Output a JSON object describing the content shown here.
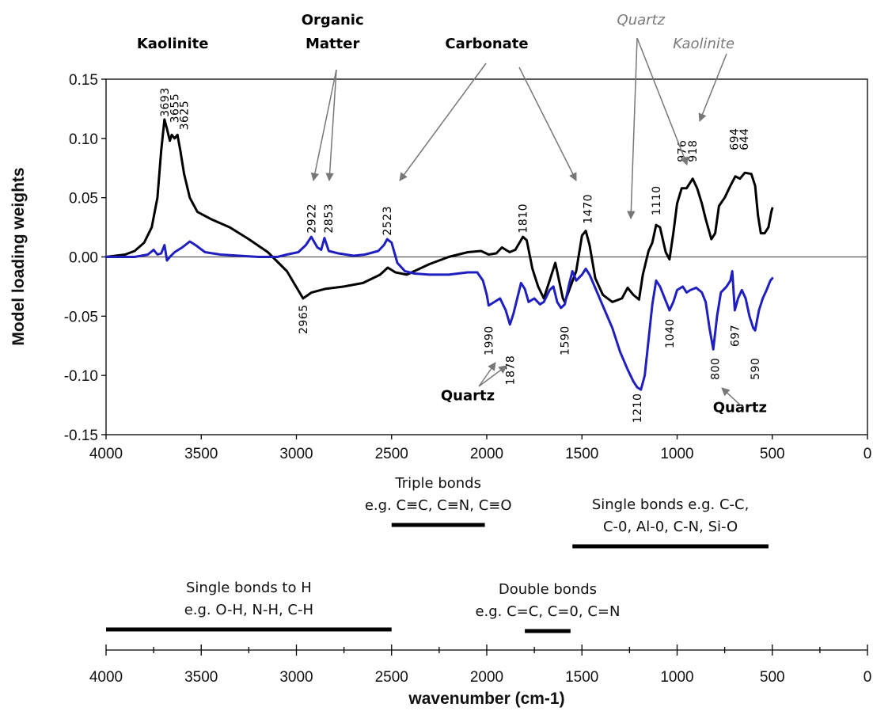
{
  "chart_data": {
    "type": "line",
    "title": "",
    "ylabel": "Model loading weights",
    "xlabel": "wavenumber (cm-1)",
    "xlim": [
      4000,
      0
    ],
    "ylim": [
      -0.15,
      0.15
    ],
    "xticks": [
      4000,
      3500,
      3000,
      2500,
      2000,
      1500,
      1000,
      500,
      0
    ],
    "xtick_labels": [
      "4000",
      "3500",
      "3000",
      "2500",
      "2000",
      "1500",
      "1000",
      "500",
      "0"
    ],
    "yticks": [
      0.15,
      0.1,
      0.05,
      0.0,
      -0.05,
      -0.1,
      -0.15
    ],
    "ytick_labels": [
      "0.15",
      "0.10",
      "0.05",
      "0.00",
      "-0.05",
      "-0.10",
      "-0.15"
    ],
    "grid": false,
    "legend": "none",
    "zero_line": true,
    "series": [
      {
        "color": "#000000",
        "points": [
          [
            4000,
            0
          ],
          [
            3900,
            0.002
          ],
          [
            3850,
            0.005
          ],
          [
            3800,
            0.012
          ],
          [
            3760,
            0.025
          ],
          [
            3730,
            0.05
          ],
          [
            3710,
            0.09
          ],
          [
            3693,
            0.116
          ],
          [
            3680,
            0.108
          ],
          [
            3665,
            0.098
          ],
          [
            3655,
            0.103
          ],
          [
            3640,
            0.1
          ],
          [
            3625,
            0.103
          ],
          [
            3610,
            0.09
          ],
          [
            3590,
            0.07
          ],
          [
            3560,
            0.05
          ],
          [
            3520,
            0.038
          ],
          [
            3450,
            0.032
          ],
          [
            3350,
            0.025
          ],
          [
            3250,
            0.015
          ],
          [
            3150,
            0.004
          ],
          [
            3050,
            -0.012
          ],
          [
            2965,
            -0.035
          ],
          [
            2920,
            -0.03
          ],
          [
            2850,
            -0.027
          ],
          [
            2750,
            -0.025
          ],
          [
            2650,
            -0.022
          ],
          [
            2560,
            -0.015
          ],
          [
            2520,
            -0.009
          ],
          [
            2480,
            -0.013
          ],
          [
            2420,
            -0.015
          ],
          [
            2300,
            -0.006
          ],
          [
            2200,
            0
          ],
          [
            2100,
            0.004
          ],
          [
            2030,
            0.005
          ],
          [
            1990,
            0.002
          ],
          [
            1950,
            0.003
          ],
          [
            1920,
            0.008
          ],
          [
            1880,
            0.004
          ],
          [
            1850,
            0.006
          ],
          [
            1810,
            0.017
          ],
          [
            1790,
            0.014
          ],
          [
            1760,
            -0.01
          ],
          [
            1730,
            -0.025
          ],
          [
            1700,
            -0.035
          ],
          [
            1670,
            -0.02
          ],
          [
            1640,
            -0.005
          ],
          [
            1620,
            -0.02
          ],
          [
            1600,
            -0.035
          ],
          [
            1590,
            -0.038
          ],
          [
            1560,
            -0.025
          ],
          [
            1530,
            -0.012
          ],
          [
            1500,
            0.018
          ],
          [
            1480,
            0.022
          ],
          [
            1460,
            0.01
          ],
          [
            1430,
            -0.018
          ],
          [
            1390,
            -0.032
          ],
          [
            1340,
            -0.038
          ],
          [
            1290,
            -0.035
          ],
          [
            1260,
            -0.026
          ],
          [
            1230,
            -0.032
          ],
          [
            1200,
            -0.036
          ],
          [
            1180,
            -0.015
          ],
          [
            1150,
            0.005
          ],
          [
            1130,
            0.012
          ],
          [
            1110,
            0.027
          ],
          [
            1090,
            0.025
          ],
          [
            1060,
            0.004
          ],
          [
            1040,
            -0.002
          ],
          [
            1020,
            0.02
          ],
          [
            1000,
            0.045
          ],
          [
            976,
            0.058
          ],
          [
            950,
            0.058
          ],
          [
            918,
            0.066
          ],
          [
            895,
            0.058
          ],
          [
            870,
            0.045
          ],
          [
            850,
            0.032
          ],
          [
            820,
            0.015
          ],
          [
            800,
            0.02
          ],
          [
            780,
            0.043
          ],
          [
            750,
            0.05
          ],
          [
            720,
            0.06
          ],
          [
            694,
            0.068
          ],
          [
            670,
            0.066
          ],
          [
            644,
            0.071
          ],
          [
            610,
            0.07
          ],
          [
            590,
            0.06
          ],
          [
            575,
            0.035
          ],
          [
            560,
            0.02
          ],
          [
            540,
            0.02
          ],
          [
            520,
            0.025
          ],
          [
            505,
            0.038
          ],
          [
            500,
            0.041
          ]
        ]
      },
      {
        "color": "#1f1fc0",
        "points": [
          [
            4000,
            0
          ],
          [
            3850,
            0
          ],
          [
            3780,
            0.002
          ],
          [
            3750,
            0.006
          ],
          [
            3730,
            0.002
          ],
          [
            3710,
            0.003
          ],
          [
            3693,
            0.01
          ],
          [
            3680,
            -0.003
          ],
          [
            3665,
            0
          ],
          [
            3640,
            0.004
          ],
          [
            3600,
            0.008
          ],
          [
            3560,
            0.013
          ],
          [
            3530,
            0.01
          ],
          [
            3480,
            0.004
          ],
          [
            3400,
            0.002
          ],
          [
            3300,
            0.001
          ],
          [
            3200,
            0
          ],
          [
            3100,
            0
          ],
          [
            3050,
            0.002
          ],
          [
            2990,
            0.004
          ],
          [
            2950,
            0.01
          ],
          [
            2922,
            0.017
          ],
          [
            2890,
            0.008
          ],
          [
            2870,
            0.006
          ],
          [
            2853,
            0.016
          ],
          [
            2830,
            0.005
          ],
          [
            2780,
            0.003
          ],
          [
            2700,
            0.001
          ],
          [
            2640,
            0.002
          ],
          [
            2570,
            0.005
          ],
          [
            2540,
            0.01
          ],
          [
            2523,
            0.015
          ],
          [
            2500,
            0.012
          ],
          [
            2470,
            -0.005
          ],
          [
            2430,
            -0.012
          ],
          [
            2380,
            -0.014
          ],
          [
            2300,
            -0.015
          ],
          [
            2200,
            -0.015
          ],
          [
            2100,
            -0.013
          ],
          [
            2050,
            -0.013
          ],
          [
            2020,
            -0.02
          ],
          [
            2000,
            -0.032
          ],
          [
            1990,
            -0.041
          ],
          [
            1960,
            -0.038
          ],
          [
            1930,
            -0.035
          ],
          [
            1900,
            -0.045
          ],
          [
            1878,
            -0.057
          ],
          [
            1860,
            -0.048
          ],
          [
            1840,
            -0.035
          ],
          [
            1820,
            -0.022
          ],
          [
            1800,
            -0.027
          ],
          [
            1780,
            -0.038
          ],
          [
            1750,
            -0.035
          ],
          [
            1720,
            -0.04
          ],
          [
            1700,
            -0.038
          ],
          [
            1670,
            -0.028
          ],
          [
            1650,
            -0.025
          ],
          [
            1630,
            -0.038
          ],
          [
            1610,
            -0.043
          ],
          [
            1590,
            -0.04
          ],
          [
            1570,
            -0.025
          ],
          [
            1550,
            -0.012
          ],
          [
            1530,
            -0.02
          ],
          [
            1500,
            -0.015
          ],
          [
            1480,
            -0.01
          ],
          [
            1460,
            -0.015
          ],
          [
            1420,
            -0.03
          ],
          [
            1380,
            -0.045
          ],
          [
            1340,
            -0.06
          ],
          [
            1300,
            -0.08
          ],
          [
            1260,
            -0.095
          ],
          [
            1230,
            -0.105
          ],
          [
            1210,
            -0.11
          ],
          [
            1190,
            -0.112
          ],
          [
            1170,
            -0.1
          ],
          [
            1150,
            -0.07
          ],
          [
            1130,
            -0.04
          ],
          [
            1110,
            -0.02
          ],
          [
            1090,
            -0.025
          ],
          [
            1060,
            -0.037
          ],
          [
            1040,
            -0.045
          ],
          [
            1020,
            -0.038
          ],
          [
            1000,
            -0.028
          ],
          [
            970,
            -0.025
          ],
          [
            950,
            -0.03
          ],
          [
            930,
            -0.028
          ],
          [
            900,
            -0.026
          ],
          [
            870,
            -0.03
          ],
          [
            850,
            -0.038
          ],
          [
            830,
            -0.06
          ],
          [
            810,
            -0.078
          ],
          [
            790,
            -0.05
          ],
          [
            770,
            -0.03
          ],
          [
            740,
            -0.025
          ],
          [
            720,
            -0.02
          ],
          [
            710,
            -0.012
          ],
          [
            697,
            -0.045
          ],
          [
            680,
            -0.035
          ],
          [
            660,
            -0.028
          ],
          [
            640,
            -0.035
          ],
          [
            620,
            -0.05
          ],
          [
            600,
            -0.06
          ],
          [
            590,
            -0.062
          ],
          [
            570,
            -0.045
          ],
          [
            550,
            -0.035
          ],
          [
            530,
            -0.028
          ],
          [
            510,
            -0.02
          ],
          [
            500,
            -0.018
          ]
        ]
      }
    ],
    "peak_labels": [
      {
        "text": "3693",
        "x": 3693,
        "y": 0.118,
        "color": "#000000"
      },
      {
        "text": "3655",
        "x": 3640,
        "y": 0.113,
        "color": "#000000"
      },
      {
        "text": "3625",
        "x": 3590,
        "y": 0.107,
        "color": "#000000"
      },
      {
        "text": "2922",
        "x": 2922,
        "y": 0.02,
        "color": "#000000"
      },
      {
        "text": "2853",
        "x": 2832,
        "y": 0.02,
        "color": "#000000"
      },
      {
        "text": "2523",
        "x": 2523,
        "y": 0.018,
        "color": "#000000"
      },
      {
        "text": "1810",
        "x": 1810,
        "y": 0.02,
        "color": "#000000"
      },
      {
        "text": "1470",
        "x": 1470,
        "y": 0.028,
        "color": "#000000"
      },
      {
        "text": "1110",
        "x": 1110,
        "y": 0.035,
        "color": "#000000"
      },
      {
        "text": "976",
        "x": 976,
        "y": 0.08,
        "color": "#000000"
      },
      {
        "text": "918",
        "x": 918,
        "y": 0.08,
        "color": "#000000"
      },
      {
        "text": "694",
        "x": 700,
        "y": 0.09,
        "color": "#000000"
      },
      {
        "text": "644",
        "x": 648,
        "y": 0.09,
        "color": "#000000"
      },
      {
        "text": "2965",
        "x": 2965,
        "y": -0.04,
        "color": "#000000"
      },
      {
        "text": "1990",
        "x": 1990,
        "y": -0.058,
        "color": "#000000"
      },
      {
        "text": "1878",
        "x": 1878,
        "y": -0.083,
        "color": "#000000"
      },
      {
        "text": "1590",
        "x": 1590,
        "y": -0.058,
        "color": "#000000"
      },
      {
        "text": "1040",
        "x": 1040,
        "y": -0.052,
        "color": "#000000"
      },
      {
        "text": "1210",
        "x": 1210,
        "y": -0.115,
        "color": "#000000"
      },
      {
        "text": "800",
        "x": 800,
        "y": -0.085,
        "color": "#000000"
      },
      {
        "text": "697",
        "x": 697,
        "y": -0.057,
        "color": "#000000"
      },
      {
        "text": "590",
        "x": 590,
        "y": -0.085,
        "color": "#000000"
      }
    ],
    "annotations": [
      {
        "text": "Kaolinite",
        "x": 3650,
        "y": 0.176,
        "color": "#000000",
        "italic": false
      },
      {
        "text": "Organic",
        "x": 2810,
        "y": 0.196,
        "color": "#000000",
        "italic": false
      },
      {
        "text": "Matter",
        "x": 2810,
        "y": 0.176,
        "color": "#000000",
        "italic": false
      },
      {
        "text": "Carbonate",
        "x": 2000,
        "y": 0.176,
        "color": "#000000",
        "italic": false
      },
      {
        "text": "Quartz",
        "x": 1190,
        "y": 0.196,
        "color": "#7a7a7a",
        "italic": true
      },
      {
        "text": "Kaolinite",
        "x": 860,
        "y": 0.176,
        "color": "#7a7a7a",
        "italic": true
      },
      {
        "text": "Quartz",
        "x": 2100,
        "y": -0.121,
        "color": "#000000",
        "italic": false
      },
      {
        "text": "Quartz",
        "x": 670,
        "y": -0.131,
        "color": "#000000",
        "italic": false
      }
    ],
    "bond_ranges": [
      {
        "lines": [
          "Triple bonds",
          "e.g. C≡C, C≡N, C≡O"
        ],
        "x_start": 2500,
        "x_end": 2010
      },
      {
        "lines": [
          "Single bonds e.g. C-C,",
          "C-0, Al-0, C-N, Si-O"
        ],
        "x_start": 1550,
        "x_end": 520
      },
      {
        "lines": [
          "Single bonds to H",
          "e.g. O-H, N-H, C-H"
        ],
        "x_start": 4000,
        "x_end": 2500
      },
      {
        "lines": [
          "Double bonds",
          "e.g. C=C, C=0, C=N"
        ],
        "x_start": 1800,
        "x_end": 1560
      }
    ]
  }
}
